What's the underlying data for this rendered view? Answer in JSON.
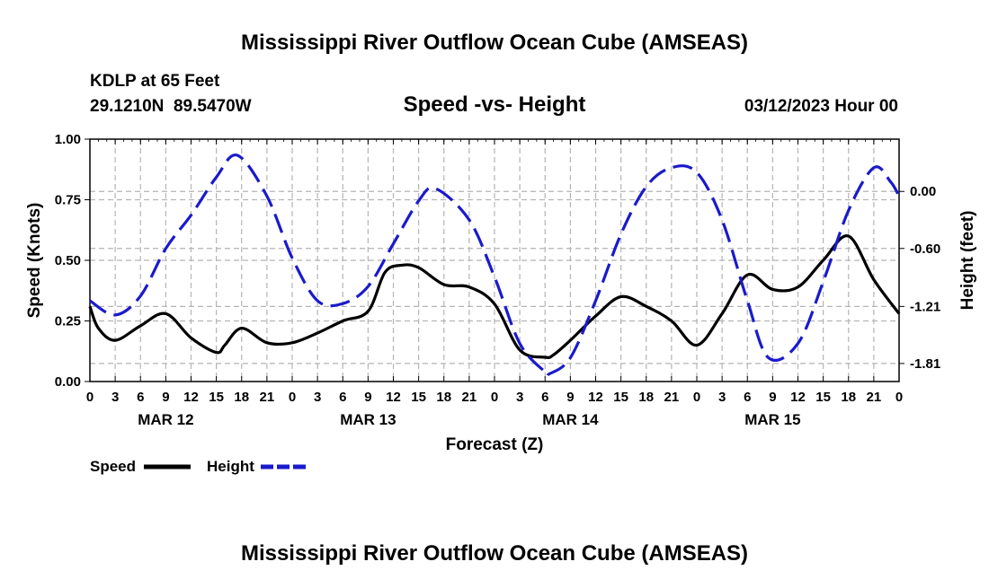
{
  "title": "Mississippi River Outflow Ocean Cube (AMSEAS)",
  "footer_title": "Mississippi River Outflow Ocean Cube (AMSEAS)",
  "station": "KDLP at 65 Feet",
  "coords": "29.1210N  89.5470W",
  "subtitle": "Speed -vs- Height",
  "run": "03/12/2023 Hour 00",
  "colors": {
    "speed": "#000000",
    "height": "#1a1acc",
    "grid": "#b4b4b4"
  },
  "chart_data": {
    "type": "line",
    "title": "Speed -vs- Height",
    "xlabel": "Forecast (Z)",
    "ylabel": "Speed (Knots)",
    "y2label": "Height (feet)",
    "xlim": [
      0,
      96
    ],
    "ylim": [
      0,
      1
    ],
    "y2lim": [
      -2.0,
      0.55
    ],
    "xticks": [
      0,
      3,
      6,
      9,
      12,
      15,
      18,
      21,
      24,
      27,
      30,
      33,
      36,
      39,
      42,
      45,
      48,
      51,
      54,
      57,
      60,
      63,
      66,
      69,
      72,
      75,
      78,
      81,
      84,
      87,
      90,
      93,
      96
    ],
    "xtick_labels": [
      "0",
      "3",
      "6",
      "9",
      "12",
      "15",
      "18",
      "21",
      "0",
      "3",
      "6",
      "9",
      "12",
      "15",
      "18",
      "21",
      "0",
      "3",
      "6",
      "9",
      "12",
      "15",
      "18",
      "21",
      "0",
      "3",
      "6",
      "9",
      "12",
      "15",
      "18",
      "21",
      "0"
    ],
    "date_labels": [
      {
        "x": 9,
        "label": "MAR 12"
      },
      {
        "x": 33,
        "label": "MAR 13"
      },
      {
        "x": 57,
        "label": "MAR 14"
      },
      {
        "x": 81,
        "label": "MAR 15"
      }
    ],
    "yticks": [
      0,
      0.25,
      0.5,
      0.75,
      1.0
    ],
    "ytick_labels": [
      "0.00",
      "0.25",
      "0.50",
      "0.75",
      "1.00"
    ],
    "y2ticks": [
      0.0,
      -0.6,
      -1.21,
      -1.81
    ],
    "y2tick_labels": [
      "0.00",
      "-0.60",
      "-1.21",
      "-1.81"
    ],
    "series": [
      {
        "name": "Speed",
        "axis": "left",
        "style": "solid",
        "x": [
          0,
          1,
          3,
          6,
          9,
          12,
          15,
          16,
          18,
          21,
          24,
          27,
          30,
          33,
          35,
          37,
          39,
          42,
          45,
          48,
          51,
          54,
          55,
          57,
          60,
          63,
          66,
          69,
          72,
          75,
          78,
          81,
          84,
          87,
          90,
          93,
          96
        ],
        "values": [
          0.31,
          0.22,
          0.17,
          0.23,
          0.28,
          0.18,
          0.12,
          0.15,
          0.22,
          0.16,
          0.16,
          0.2,
          0.25,
          0.29,
          0.45,
          0.48,
          0.47,
          0.4,
          0.39,
          0.32,
          0.13,
          0.1,
          0.11,
          0.17,
          0.27,
          0.35,
          0.31,
          0.25,
          0.15,
          0.28,
          0.44,
          0.38,
          0.39,
          0.5,
          0.6,
          0.42,
          0.28
        ]
      },
      {
        "name": "Height",
        "axis": "right",
        "style": "dashed",
        "x": [
          0,
          3,
          6,
          9,
          12,
          15,
          17.5,
          21,
          24,
          27,
          30,
          33,
          36,
          39,
          41,
          45,
          48,
          51,
          54,
          54.5,
          57,
          60,
          63,
          66,
          69,
          72,
          75,
          78,
          80.5,
          84,
          87,
          90,
          93,
          95,
          96
        ],
        "values": [
          -1.15,
          -1.3,
          -1.1,
          -0.6,
          -0.25,
          0.15,
          0.38,
          -0.05,
          -0.7,
          -1.15,
          -1.18,
          -1.0,
          -0.55,
          -0.1,
          0.03,
          -0.3,
          -0.9,
          -1.6,
          -1.9,
          -1.92,
          -1.75,
          -1.15,
          -0.45,
          0.05,
          0.25,
          0.2,
          -0.3,
          -1.15,
          -1.75,
          -1.6,
          -0.95,
          -0.2,
          0.25,
          0.1,
          -0.05
        ]
      }
    ],
    "legend": [
      {
        "label": "Speed",
        "style": "solid"
      },
      {
        "label": "Height",
        "style": "dashed"
      }
    ],
    "legend_position": "bottom-left"
  }
}
